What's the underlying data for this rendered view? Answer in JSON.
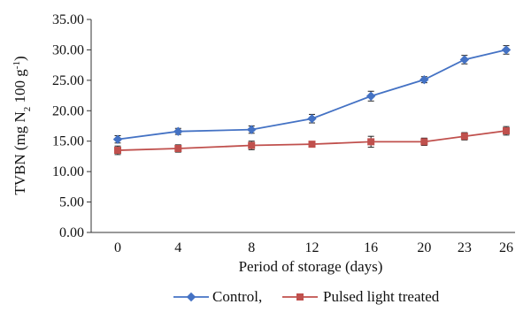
{
  "chart_data": {
    "type": "line",
    "title": "",
    "xlabel": "Period of storage (days)",
    "ylabel": "TVBN (mg N2 100 g-1)",
    "ylabel_parts": {
      "pre": "TVBN (mg N",
      "sub": "2",
      "mid": " 100 g",
      "sup": "-1",
      "post": ")"
    },
    "categories": [
      "0",
      "4",
      "8",
      "12",
      "16",
      "20",
      "23",
      "26"
    ],
    "x_positions": [
      0,
      4.2,
      9.3,
      13.5,
      17.6,
      21.3,
      24.1,
      27.0
    ],
    "ylim": [
      0,
      35
    ],
    "y_ticks": [
      "0.00",
      "5.00",
      "10.00",
      "15.00",
      "20.00",
      "25.00",
      "30.00",
      "35.00"
    ],
    "grid": false,
    "legend_position": "bottom",
    "series": [
      {
        "name": "Control,",
        "color": "#4472C4",
        "marker": "diamond",
        "values": [
          15.3,
          16.6,
          16.9,
          18.7,
          22.4,
          25.1,
          28.4,
          30.0
        ],
        "errors": [
          0.6,
          0.5,
          0.6,
          0.7,
          0.8,
          0.5,
          0.7,
          0.7
        ]
      },
      {
        "name": "Pulsed light treated",
        "color": "#C0504D",
        "marker": "square",
        "values": [
          13.5,
          13.8,
          14.3,
          14.5,
          14.9,
          14.9,
          15.8,
          16.7
        ],
        "errors": [
          0.7,
          0.6,
          0.7,
          0.4,
          0.9,
          0.6,
          0.6,
          0.7
        ]
      }
    ]
  }
}
